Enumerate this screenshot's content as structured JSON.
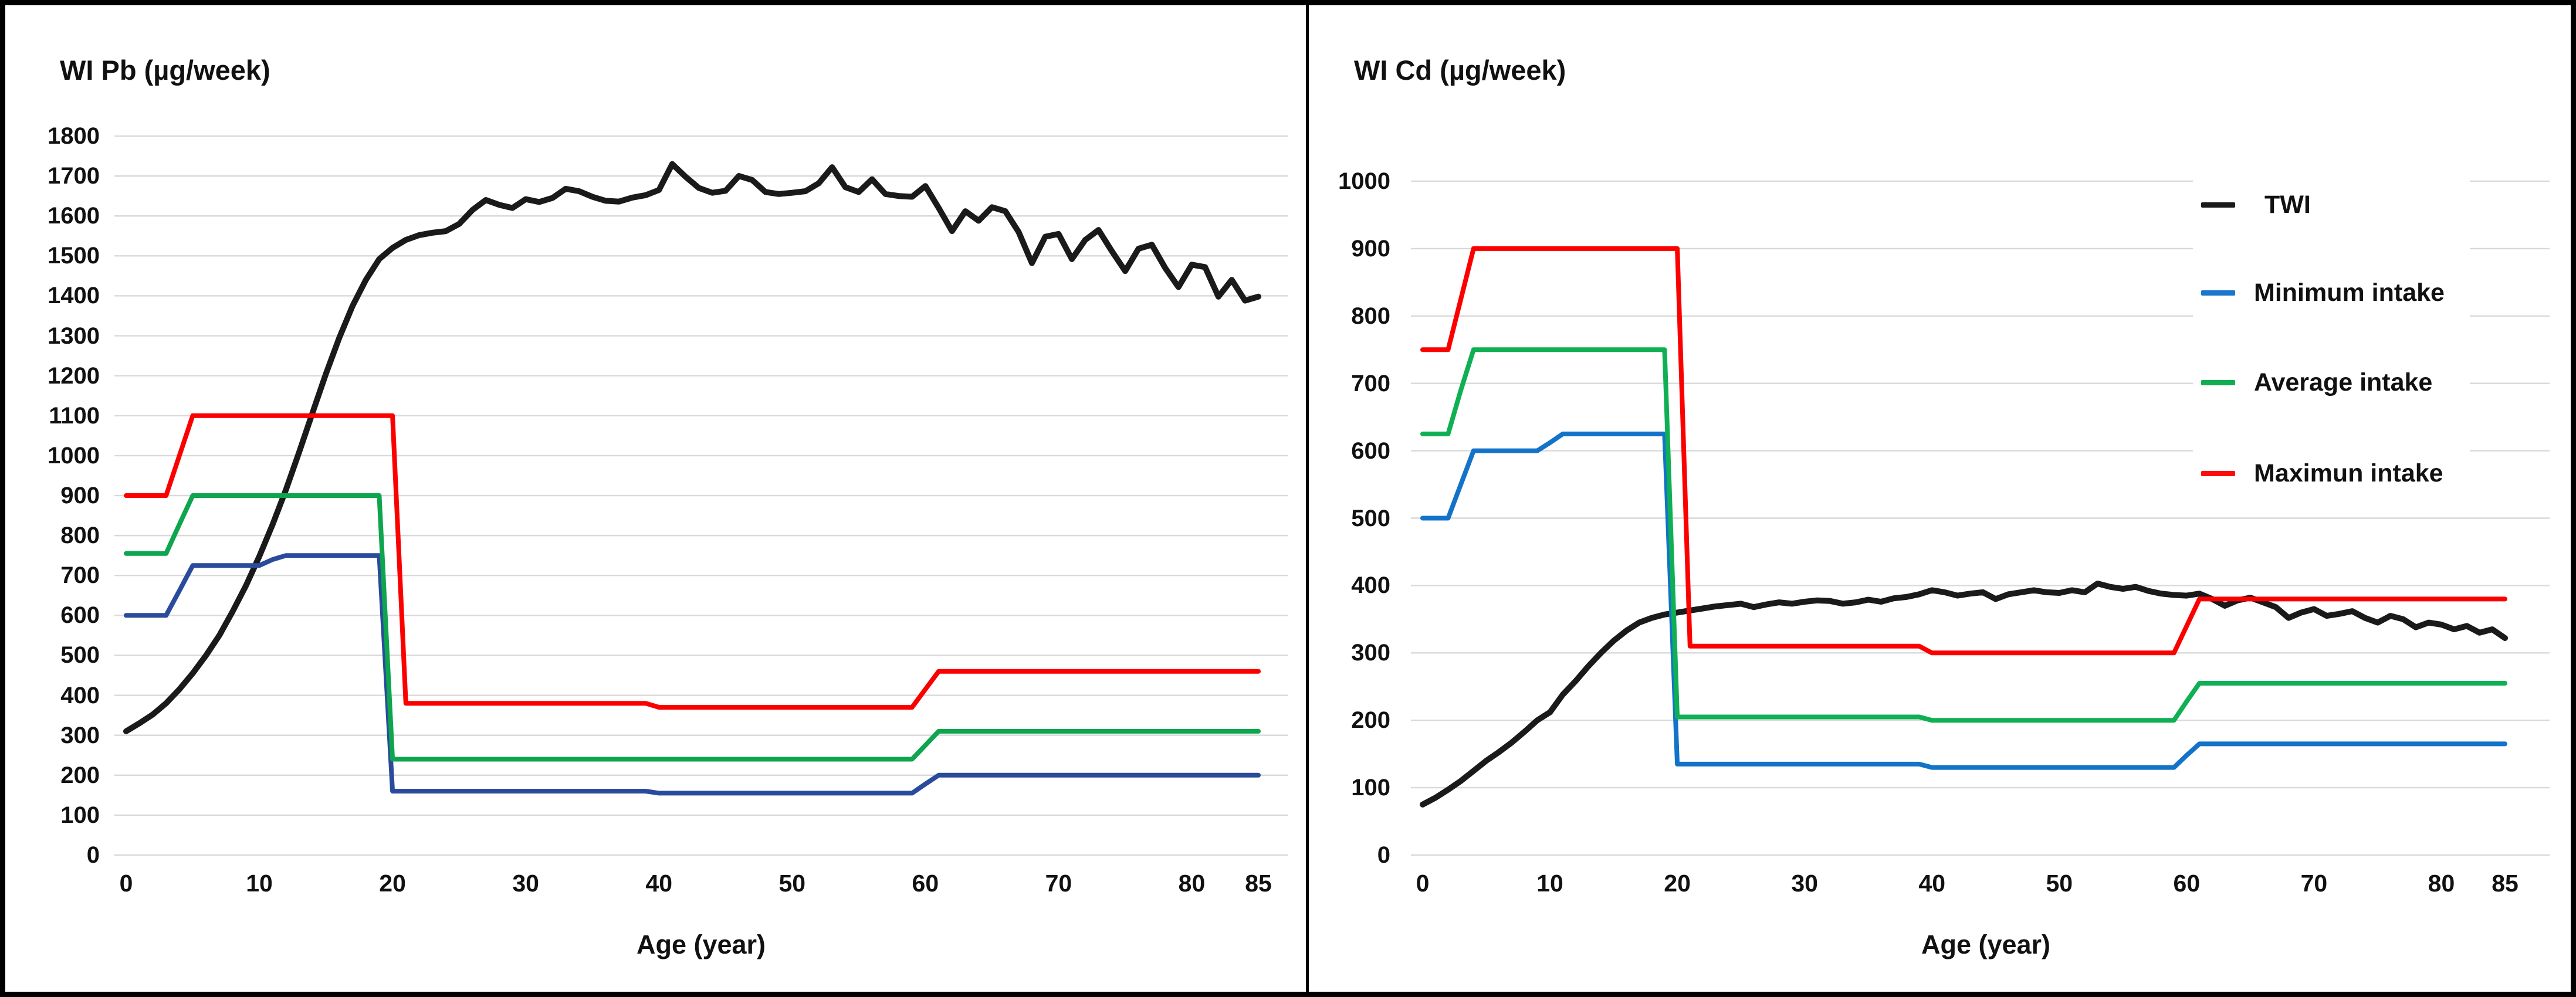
{
  "figure": {
    "background": "#ffffff",
    "border_color": "#000000",
    "gridline_color": "#d9d9d9"
  },
  "legend": {
    "position": "top-right-of-second-chart",
    "items": [
      {
        "label": "TWI",
        "color": "#1a1a1a"
      },
      {
        "label": "Minimum intake",
        "color": "#1b75cb"
      },
      {
        "label": "Average intake",
        "color": "#12ad53"
      },
      {
        "label": "Maximun intake",
        "color": "#fe0b0b"
      }
    ]
  },
  "chart_data": [
    {
      "type": "line",
      "title": "WI Pb (µg/week)",
      "xlabel": "Age (year)",
      "ylabel": "",
      "xlim": [
        0,
        85
      ],
      "ylim": [
        0,
        1800
      ],
      "grid": true,
      "x_ticks": [
        0,
        10,
        20,
        30,
        40,
        50,
        60,
        70,
        80,
        85
      ],
      "y_ticks": [
        0,
        100,
        200,
        300,
        400,
        500,
        600,
        700,
        800,
        900,
        1000,
        1100,
        1200,
        1300,
        1400,
        1500,
        1600,
        1700,
        1800
      ],
      "x": {
        "start": 0,
        "end": 85,
        "step": 1
      },
      "series": [
        {
          "name": "TWI",
          "color": "#1a1a1a",
          "width": 10,
          "values": [
            310,
            330,
            352,
            380,
            415,
            455,
            500,
            550,
            610,
            675,
            748,
            828,
            915,
            1010,
            1108,
            1205,
            1295,
            1375,
            1440,
            1492,
            1520,
            1540,
            1552,
            1558,
            1562,
            1580,
            1615,
            1640,
            1628,
            1620,
            1642,
            1635,
            1645,
            1668,
            1662,
            1648,
            1638,
            1636,
            1646,
            1652,
            1665,
            1730,
            1698,
            1670,
            1658,
            1663,
            1700,
            1690,
            1660,
            1655,
            1658,
            1662,
            1682,
            1722,
            1672,
            1660,
            1692,
            1655,
            1650,
            1648,
            1675,
            1620,
            1562,
            1612,
            1588,
            1622,
            1612,
            1560,
            1482,
            1548,
            1555,
            1492,
            1540,
            1565,
            1512,
            1462,
            1518,
            1528,
            1470,
            1422,
            1478,
            1472,
            1398,
            1440,
            1388,
            1398
          ]
        },
        {
          "name": "Minimum intake",
          "color": "#2a4b9c",
          "width": 8,
          "values": [
            600,
            600,
            600,
            600,
            662,
            725,
            725,
            725,
            725,
            725,
            725,
            740,
            750,
            750,
            750,
            750,
            750,
            750,
            750,
            750,
            160,
            160,
            160,
            160,
            160,
            160,
            160,
            160,
            160,
            160,
            160,
            160,
            160,
            160,
            160,
            160,
            160,
            160,
            160,
            160,
            155,
            155,
            155,
            155,
            155,
            155,
            155,
            155,
            155,
            155,
            155,
            155,
            155,
            155,
            155,
            155,
            155,
            155,
            155,
            155,
            178,
            200,
            200,
            200,
            200,
            200,
            200,
            200,
            200,
            200,
            200,
            200,
            200,
            200,
            200,
            200,
            200,
            200,
            200,
            200,
            200,
            200,
            200,
            200,
            200,
            200
          ]
        },
        {
          "name": "Average intake",
          "color": "#0ea54e",
          "width": 8,
          "values": [
            755,
            755,
            755,
            755,
            828,
            900,
            900,
            900,
            900,
            900,
            900,
            900,
            900,
            900,
            900,
            900,
            900,
            900,
            900,
            900,
            240,
            240,
            240,
            240,
            240,
            240,
            240,
            240,
            240,
            240,
            240,
            240,
            240,
            240,
            240,
            240,
            240,
            240,
            240,
            240,
            240,
            240,
            240,
            240,
            240,
            240,
            240,
            240,
            240,
            240,
            240,
            240,
            240,
            240,
            240,
            240,
            240,
            240,
            240,
            240,
            275,
            310,
            310,
            310,
            310,
            310,
            310,
            310,
            310,
            310,
            310,
            310,
            310,
            310,
            310,
            310,
            310,
            310,
            310,
            310,
            310,
            310,
            310,
            310,
            310,
            310
          ]
        },
        {
          "name": "Maximun intake",
          "color": "#fc0000",
          "width": 8,
          "values": [
            900,
            900,
            900,
            900,
            1000,
            1100,
            1100,
            1100,
            1100,
            1100,
            1100,
            1100,
            1100,
            1100,
            1100,
            1100,
            1100,
            1100,
            1100,
            1100,
            1100,
            380,
            380,
            380,
            380,
            380,
            380,
            380,
            380,
            380,
            380,
            380,
            380,
            380,
            380,
            380,
            380,
            380,
            380,
            380,
            370,
            370,
            370,
            370,
            370,
            370,
            370,
            370,
            370,
            370,
            370,
            370,
            370,
            370,
            370,
            370,
            370,
            370,
            370,
            370,
            415,
            460,
            460,
            460,
            460,
            460,
            460,
            460,
            460,
            460,
            460,
            460,
            460,
            460,
            460,
            460,
            460,
            460,
            460,
            460,
            460,
            460,
            460,
            460,
            460,
            460
          ]
        }
      ]
    },
    {
      "type": "line",
      "title": "WI Cd (µg/week)",
      "xlabel": "Age (year)",
      "ylabel": "",
      "xlim": [
        0,
        85
      ],
      "ylim": [
        0,
        1000
      ],
      "grid": true,
      "x_ticks": [
        0,
        10,
        20,
        30,
        40,
        50,
        60,
        70,
        80,
        85
      ],
      "y_ticks": [
        0,
        100,
        200,
        300,
        400,
        500,
        600,
        700,
        800,
        900,
        1000
      ],
      "x": {
        "start": 0,
        "end": 85,
        "step": 1
      },
      "series": [
        {
          "name": "TWI",
          "color": "#1a1a1a",
          "width": 10,
          "values": [
            75,
            85,
            97,
            110,
            125,
            140,
            153,
            167,
            183,
            200,
            212,
            238,
            258,
            280,
            300,
            318,
            333,
            345,
            352,
            357,
            360,
            363,
            366,
            369,
            371,
            373,
            368,
            372,
            375,
            373,
            376,
            378,
            377,
            373,
            375,
            379,
            376,
            381,
            383,
            387,
            393,
            390,
            385,
            388,
            390,
            380,
            387,
            390,
            393,
            390,
            389,
            393,
            390,
            403,
            398,
            395,
            398,
            392,
            388,
            386,
            385,
            388,
            380,
            370,
            378,
            382,
            375,
            368,
            352,
            360,
            365,
            355,
            358,
            362,
            352,
            345,
            355,
            350,
            338,
            345,
            342,
            335,
            340,
            330,
            335,
            322
          ]
        },
        {
          "name": "Minimum intake",
          "color": "#1273c9",
          "width": 8,
          "values": [
            500,
            500,
            500,
            550,
            600,
            600,
            600,
            600,
            600,
            600,
            612,
            625,
            625,
            625,
            625,
            625,
            625,
            625,
            625,
            625,
            135,
            135,
            135,
            135,
            135,
            135,
            135,
            135,
            135,
            135,
            135,
            135,
            135,
            135,
            135,
            135,
            135,
            135,
            135,
            135,
            130,
            130,
            130,
            130,
            130,
            130,
            130,
            130,
            130,
            130,
            130,
            130,
            130,
            130,
            130,
            130,
            130,
            130,
            130,
            130,
            148,
            165,
            165,
            165,
            165,
            165,
            165,
            165,
            165,
            165,
            165,
            165,
            165,
            165,
            165,
            165,
            165,
            165,
            165,
            165,
            165,
            165,
            165,
            165,
            165,
            165
          ]
        },
        {
          "name": "Average intake",
          "color": "#0fb054",
          "width": 8,
          "values": [
            625,
            625,
            625,
            690,
            750,
            750,
            750,
            750,
            750,
            750,
            750,
            750,
            750,
            750,
            750,
            750,
            750,
            750,
            750,
            750,
            205,
            205,
            205,
            205,
            205,
            205,
            205,
            205,
            205,
            205,
            205,
            205,
            205,
            205,
            205,
            205,
            205,
            205,
            205,
            205,
            200,
            200,
            200,
            200,
            200,
            200,
            200,
            200,
            200,
            200,
            200,
            200,
            200,
            200,
            200,
            200,
            200,
            200,
            200,
            200,
            228,
            255,
            255,
            255,
            255,
            255,
            255,
            255,
            255,
            255,
            255,
            255,
            255,
            255,
            255,
            255,
            255,
            255,
            255,
            255,
            255,
            255,
            255,
            255,
            255,
            255
          ]
        },
        {
          "name": "Maximun intake",
          "color": "#fc0000",
          "width": 8,
          "values": [
            750,
            750,
            750,
            825,
            900,
            900,
            900,
            900,
            900,
            900,
            900,
            900,
            900,
            900,
            900,
            900,
            900,
            900,
            900,
            900,
            900,
            310,
            310,
            310,
            310,
            310,
            310,
            310,
            310,
            310,
            310,
            310,
            310,
            310,
            310,
            310,
            310,
            310,
            310,
            310,
            300,
            300,
            300,
            300,
            300,
            300,
            300,
            300,
            300,
            300,
            300,
            300,
            300,
            300,
            300,
            300,
            300,
            300,
            300,
            300,
            340,
            380,
            380,
            380,
            380,
            380,
            380,
            380,
            380,
            380,
            380,
            380,
            380,
            380,
            380,
            380,
            380,
            380,
            380,
            380,
            380,
            380,
            380,
            380,
            380,
            380
          ]
        }
      ]
    }
  ]
}
